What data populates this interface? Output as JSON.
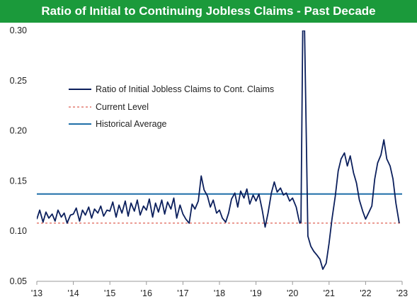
{
  "chart_data": {
    "type": "line",
    "title": "Ratio of Initial to Continuing Jobless Claims - Past Decade",
    "xlabel": "",
    "ylabel": "",
    "ylim": [
      0.05,
      0.3
    ],
    "y_ticks": [
      "0.05",
      "0.10",
      "0.15",
      "0.20",
      "0.25",
      "0.30"
    ],
    "x_ticks": [
      "'13",
      "'14",
      "'15",
      "'16",
      "'17",
      "'18",
      "'19",
      "'20",
      "'21",
      "'22",
      "'23"
    ],
    "x_tick_years": [
      2013,
      2014,
      2015,
      2016,
      2017,
      2018,
      2019,
      2020,
      2021,
      2022,
      2023
    ],
    "xlim": [
      2013.0,
      2023.0
    ],
    "grid": false,
    "legend_position": "upper-left",
    "series": [
      {
        "name": "Ratio of Initial Jobless Claims to Cont. Claims",
        "color": "#0b1f5c",
        "style": "solid",
        "x": [
          2013.0,
          2013.08,
          2013.17,
          2013.25,
          2013.33,
          2013.42,
          2013.5,
          2013.58,
          2013.67,
          2013.75,
          2013.83,
          2013.92,
          2014.0,
          2014.08,
          2014.17,
          2014.25,
          2014.33,
          2014.42,
          2014.5,
          2014.58,
          2014.67,
          2014.75,
          2014.83,
          2014.92,
          2015.0,
          2015.08,
          2015.17,
          2015.25,
          2015.33,
          2015.42,
          2015.5,
          2015.58,
          2015.67,
          2015.75,
          2015.83,
          2015.92,
          2016.0,
          2016.08,
          2016.17,
          2016.25,
          2016.33,
          2016.42,
          2016.5,
          2016.58,
          2016.67,
          2016.75,
          2016.83,
          2016.92,
          2017.0,
          2017.08,
          2017.17,
          2017.25,
          2017.33,
          2017.42,
          2017.5,
          2017.58,
          2017.67,
          2017.75,
          2017.83,
          2017.92,
          2018.0,
          2018.08,
          2018.17,
          2018.25,
          2018.33,
          2018.42,
          2018.5,
          2018.58,
          2018.67,
          2018.75,
          2018.83,
          2018.92,
          2019.0,
          2019.08,
          2019.17,
          2019.25,
          2019.33,
          2019.42,
          2019.5,
          2019.58,
          2019.67,
          2019.75,
          2019.83,
          2019.92,
          2020.0,
          2020.1,
          2020.17,
          2020.2,
          2020.23,
          2020.28,
          2020.33,
          2020.42,
          2020.5,
          2020.58,
          2020.67,
          2020.75,
          2020.83,
          2020.92,
          2021.0,
          2021.08,
          2021.17,
          2021.25,
          2021.33,
          2021.42,
          2021.5,
          2021.58,
          2021.67,
          2021.75,
          2021.83,
          2021.92,
          2022.0,
          2022.08,
          2022.17,
          2022.25,
          2022.33,
          2022.42,
          2022.5,
          2022.58,
          2022.67,
          2022.75,
          2022.83,
          2022.92
        ],
        "values": [
          0.112,
          0.121,
          0.109,
          0.119,
          0.113,
          0.117,
          0.11,
          0.121,
          0.114,
          0.118,
          0.108,
          0.116,
          0.117,
          0.123,
          0.11,
          0.121,
          0.116,
          0.124,
          0.113,
          0.122,
          0.118,
          0.125,
          0.115,
          0.121,
          0.12,
          0.129,
          0.114,
          0.126,
          0.118,
          0.13,
          0.115,
          0.128,
          0.12,
          0.131,
          0.116,
          0.125,
          0.121,
          0.132,
          0.114,
          0.128,
          0.119,
          0.131,
          0.117,
          0.129,
          0.122,
          0.133,
          0.113,
          0.126,
          0.117,
          0.112,
          0.108,
          0.127,
          0.122,
          0.13,
          0.155,
          0.141,
          0.135,
          0.124,
          0.131,
          0.118,
          0.121,
          0.113,
          0.109,
          0.118,
          0.132,
          0.138,
          0.124,
          0.14,
          0.133,
          0.142,
          0.127,
          0.136,
          0.13,
          0.137,
          0.121,
          0.104,
          0.118,
          0.138,
          0.149,
          0.139,
          0.143,
          0.136,
          0.138,
          0.13,
          0.133,
          0.124,
          0.112,
          0.108,
          0.109,
          0.3,
          0.3,
          0.095,
          0.085,
          0.08,
          0.076,
          0.072,
          0.062,
          0.068,
          0.088,
          0.112,
          0.135,
          0.16,
          0.172,
          0.178,
          0.165,
          0.175,
          0.158,
          0.148,
          0.131,
          0.12,
          0.112,
          0.118,
          0.125,
          0.152,
          0.168,
          0.176,
          0.191,
          0.172,
          0.165,
          0.152,
          0.128,
          0.108
        ]
      },
      {
        "name": "Current Level",
        "color": "#d63a2a",
        "style": "dashed",
        "values": [
          0.108
        ]
      },
      {
        "name": "Historical Average",
        "color": "#1f6fa8",
        "style": "solid",
        "values": [
          0.137
        ]
      }
    ]
  }
}
